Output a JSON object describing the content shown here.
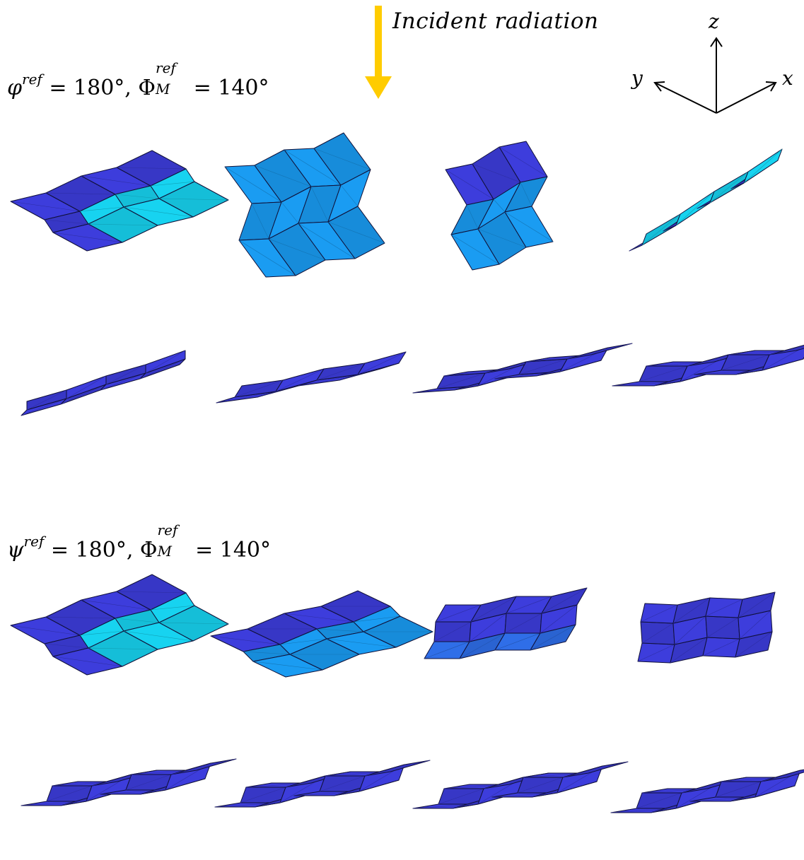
{
  "incident_label": "Incident radiation",
  "axes": {
    "x": "x",
    "y": "y",
    "z": "z"
  },
  "sections": [
    {
      "label": {
        "angle_symbol": "φ",
        "angle_sup": "ref",
        "angle_value": "= 180°,",
        "fold_symbol": "Φ",
        "fold_sup": "ref",
        "fold_sub": "M",
        "fold_value": "= 140°"
      }
    },
    {
      "label": {
        "angle_symbol": "ψ",
        "angle_sup": "ref",
        "angle_value": "= 180°,",
        "fold_symbol": "Φ",
        "fold_sup": "ref",
        "fold_sub": "M",
        "fold_value": "= 140°"
      }
    }
  ],
  "colors": {
    "dark_blue": "#3d3ddc",
    "mid_blue": "#2f6ee8",
    "light_blue": "#1a9cf2",
    "cyan": "#17d3f0",
    "arrow": "#ffcc00",
    "edge": "#101038"
  }
}
